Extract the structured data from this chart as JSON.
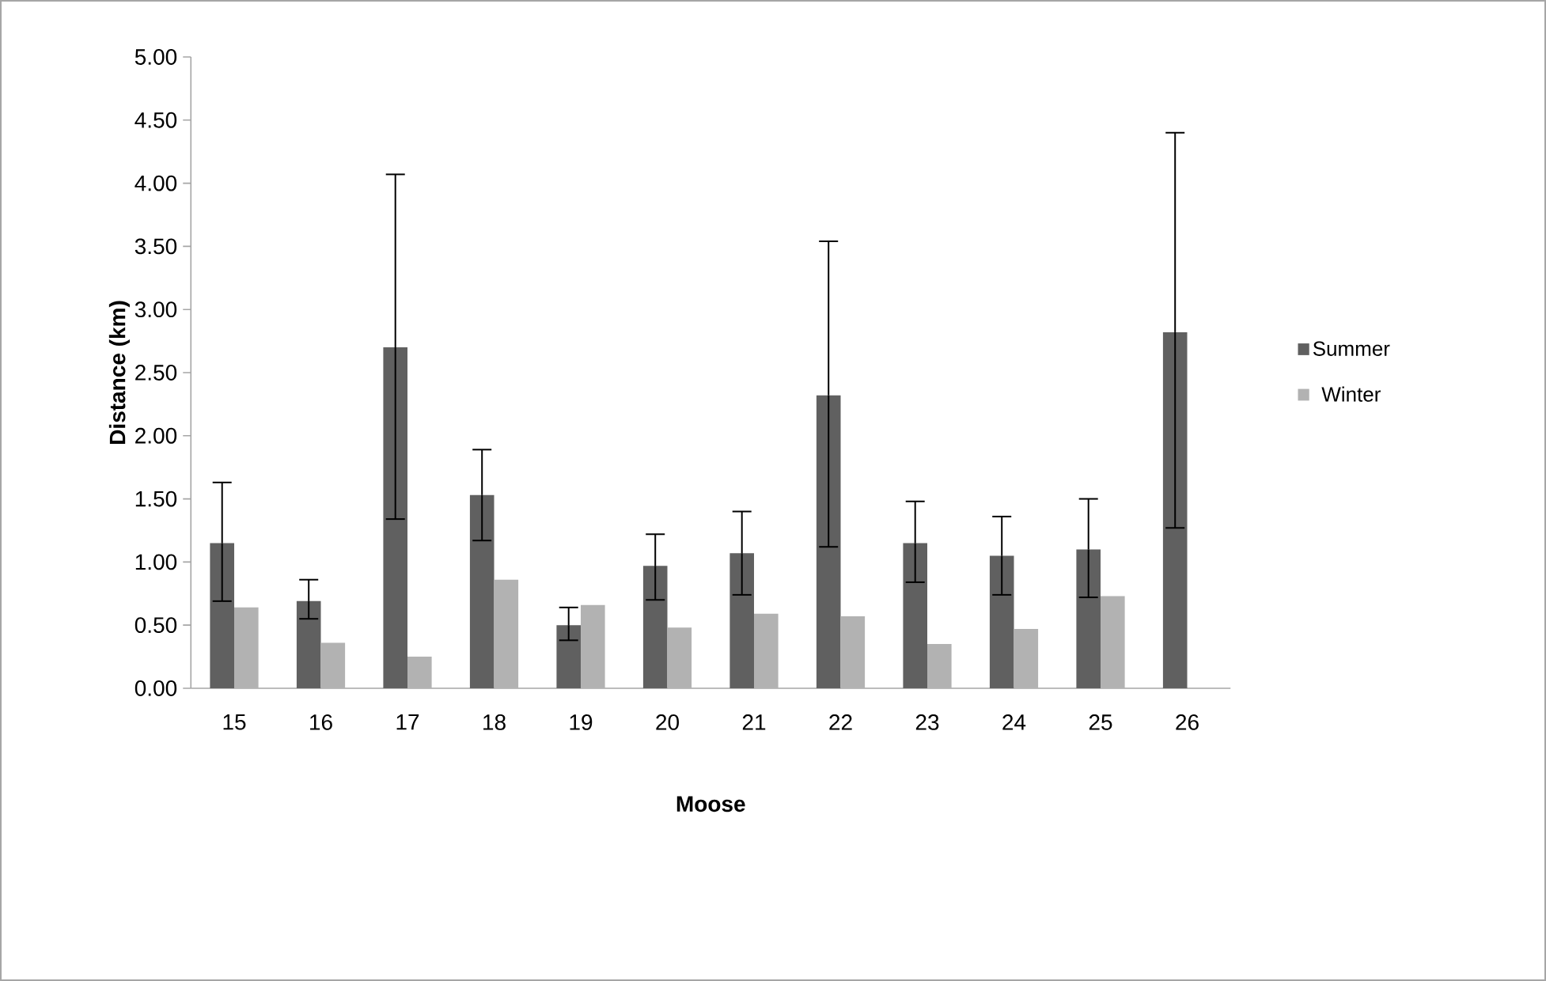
{
  "chart_data": {
    "type": "bar",
    "xlabel": "Moose",
    "ylabel": "Distance (km)",
    "categories": [
      "15",
      "16",
      "17",
      "18",
      "19",
      "20",
      "21",
      "22",
      "23",
      "24",
      "25",
      "26"
    ],
    "series": [
      {
        "name": "Summer",
        "color": "#606060",
        "values": [
          1.15,
          0.69,
          2.7,
          1.53,
          0.5,
          0.97,
          1.07,
          2.32,
          1.15,
          1.05,
          1.1,
          2.82
        ],
        "errors": [
          [
            0.69,
            1.63
          ],
          [
            0.55,
            0.86
          ],
          [
            1.34,
            4.07
          ],
          [
            1.17,
            1.89
          ],
          [
            0.38,
            0.64
          ],
          [
            0.7,
            1.22
          ],
          [
            0.74,
            1.4
          ],
          [
            1.12,
            3.54
          ],
          [
            0.84,
            1.48
          ],
          [
            0.74,
            1.36
          ],
          [
            0.72,
            1.5
          ],
          [
            1.27,
            4.4
          ]
        ]
      },
      {
        "name": "Winter",
        "color": "#b2b2b2",
        "values": [
          0.64,
          0.36,
          0.25,
          0.86,
          0.66,
          0.48,
          0.59,
          0.57,
          0.35,
          0.47,
          0.73,
          null
        ]
      }
    ],
    "ylim": [
      0,
      5
    ],
    "yticks": [
      {
        "value": 0,
        "label": "0.00"
      },
      {
        "value": 0.5,
        "label": "0.50"
      },
      {
        "value": 1,
        "label": "1.00"
      },
      {
        "value": 1.5,
        "label": "1.50"
      },
      {
        "value": 2,
        "label": "2.00"
      },
      {
        "value": 2.5,
        "label": "2.50"
      },
      {
        "value": 3,
        "label": "3.00"
      },
      {
        "value": 3.5,
        "label": "3.50"
      },
      {
        "value": 4,
        "label": "4.00"
      },
      {
        "value": 4.5,
        "label": "4.50"
      },
      {
        "value": 5,
        "label": "5.00"
      }
    ],
    "grid": false,
    "legend": "right"
  }
}
